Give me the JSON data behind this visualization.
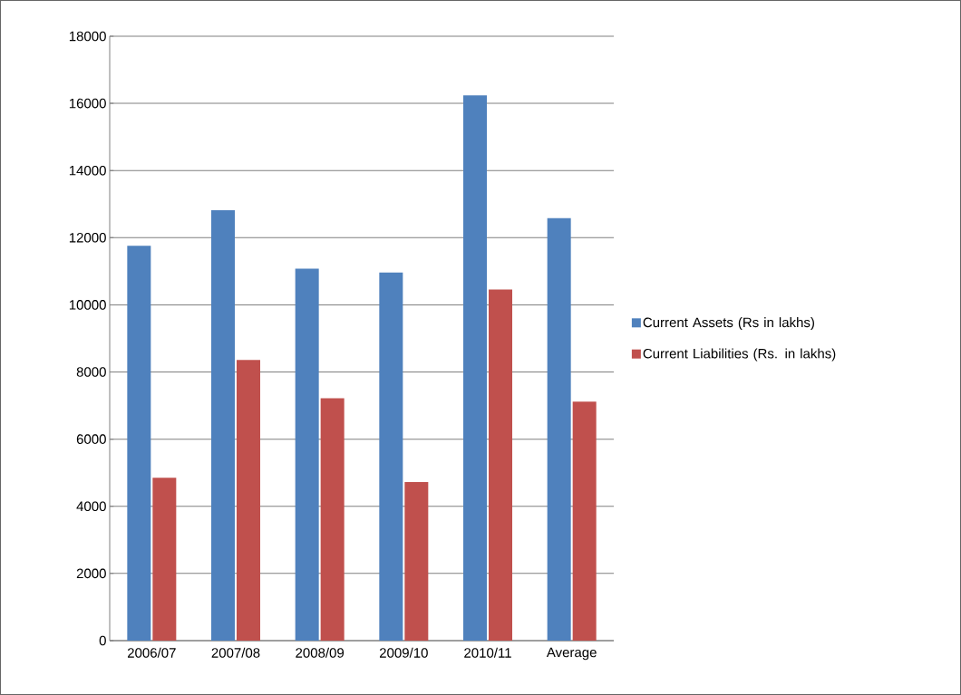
{
  "chart_data": {
    "type": "bar",
    "categories": [
      "2006/07",
      "2007/08",
      "2008/09",
      "2009/10",
      "2010/11",
      "Average"
    ],
    "series": [
      {
        "name": "Current Assets (Rs in lakhs)",
        "color": "#4f81bd",
        "values": [
          11760,
          12820,
          11080,
          10960,
          16240,
          12580
        ]
      },
      {
        "name": "Current Liabilities (Rs. in lakhs)",
        "color": "#c0504d",
        "values": [
          4850,
          8360,
          7220,
          4720,
          10460,
          7120
        ]
      }
    ],
    "ylim": [
      0,
      18000
    ],
    "yticks": [
      0,
      2000,
      4000,
      6000,
      8000,
      10000,
      12000,
      14000,
      16000,
      18000
    ],
    "grid": "y",
    "legend": "right"
  }
}
